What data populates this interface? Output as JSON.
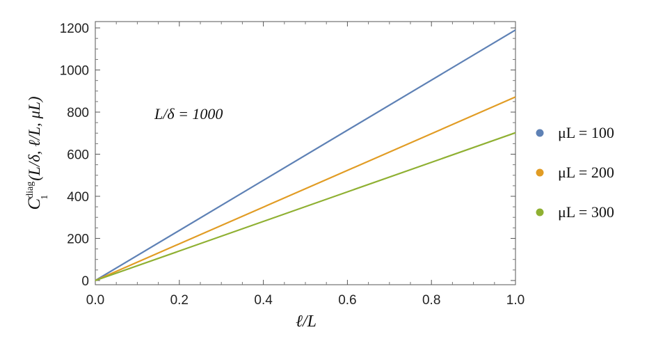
{
  "chart_data": {
    "type": "line",
    "title": "",
    "xlabel": "ℓ/L",
    "ylabel": {
      "base": "C",
      "subscript": "1",
      "superscript": "diag",
      "args": "(L/δ, ℓ/L, μL)"
    },
    "annotation": "L/δ = 1000",
    "xlim": [
      0,
      1
    ],
    "ylim": [
      -20,
      1230
    ],
    "xticks": [
      0.0,
      0.2,
      0.4,
      0.6,
      0.8,
      1.0
    ],
    "xtick_labels": [
      "0.0",
      "0.2",
      "0.4",
      "0.6",
      "0.8",
      "1.0"
    ],
    "yticks": [
      0,
      200,
      400,
      600,
      800,
      1000,
      1200
    ],
    "ytick_labels": [
      "0",
      "200",
      "400",
      "600",
      "800",
      "1000",
      "1200"
    ],
    "grid": false,
    "legend_position": "right",
    "series": [
      {
        "name": "μL = 100",
        "color": "#5e81b5",
        "x": [
          0.0,
          1.0
        ],
        "y": [
          0,
          1190
        ]
      },
      {
        "name": "μL = 200",
        "color": "#e19c24",
        "x": [
          0.0,
          1.0
        ],
        "y": [
          0,
          872
        ]
      },
      {
        "name": "μL = 300",
        "color": "#8fb032",
        "x": [
          0.0,
          1.0
        ],
        "y": [
          0,
          702
        ]
      }
    ]
  }
}
